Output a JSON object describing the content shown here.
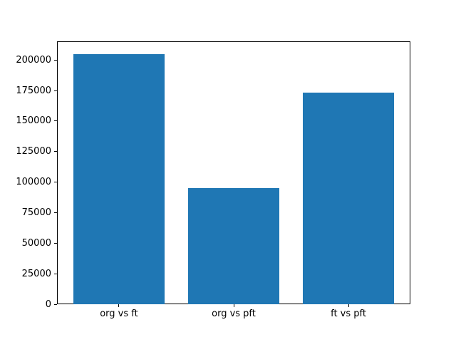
{
  "chart_data": {
    "type": "bar",
    "title": "",
    "xlabel": "",
    "ylabel": "",
    "categories": [
      "org vs ft",
      "org vs pft",
      "ft vs pft"
    ],
    "values": [
      205000,
      95000,
      173000
    ],
    "yticks": [
      0,
      25000,
      50000,
      75000,
      100000,
      125000,
      150000,
      175000,
      200000
    ],
    "ylim": [
      0,
      215250
    ],
    "xlim": [
      -0.54,
      2.54
    ],
    "bar_width_units": 0.8,
    "bar_color": "#1f77b4",
    "spine_color": "#000000",
    "tick_label_color": "#000000",
    "background_color": "#ffffff",
    "grid": "off",
    "legend": null
  }
}
